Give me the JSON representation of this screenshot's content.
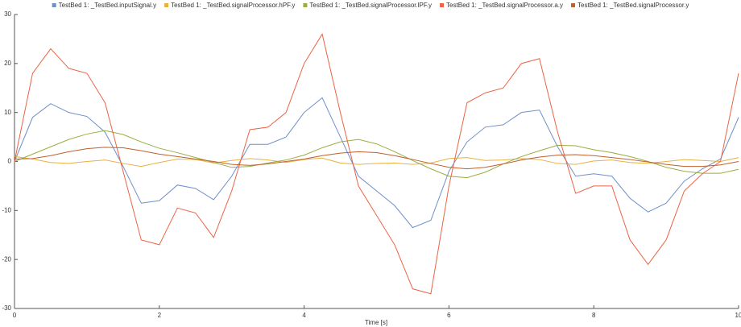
{
  "chart_data": {
    "type": "line",
    "x_label": "Time [s]",
    "x": [
      0,
      0.25,
      0.5,
      0.75,
      1,
      1.25,
      1.5,
      1.75,
      2,
      2.25,
      2.5,
      2.75,
      3,
      3.25,
      3.5,
      3.75,
      4,
      4.25,
      4.5,
      4.75,
      5,
      5.25,
      5.5,
      5.75,
      6,
      6.25,
      6.5,
      6.75,
      7,
      7.25,
      7.5,
      7.75,
      8,
      8.25,
      8.5,
      8.75,
      9,
      9.25,
      9.5,
      9.75,
      10
    ],
    "xlim": [
      0,
      10
    ],
    "xticks": [
      0,
      2,
      4,
      6,
      8,
      10
    ],
    "ylim": [
      -30,
      30
    ],
    "yticks": [
      -30,
      -20,
      -10,
      0,
      10,
      20,
      30
    ],
    "grid": false,
    "legend": "top",
    "series": [
      {
        "name": "TestBed 1: _TestBed.inputSignal.y",
        "color": "#6f8fc9",
        "values": [
          0,
          9,
          11.8,
          10,
          9.2,
          6,
          -1,
          -8.5,
          -8,
          -4.8,
          -5.5,
          -7.8,
          -3,
          3.5,
          3.5,
          5,
          10,
          13,
          5,
          -3,
          -6,
          -9,
          -13.5,
          -12,
          -2,
          4,
          7,
          7.5,
          10,
          10.5,
          3,
          -3,
          -2.5,
          -3,
          -7.5,
          -10.3,
          -8.5,
          -4,
          -1.5,
          0.5,
          9
        ]
      },
      {
        "name": "TestBed 1: _TestBed.signalProcessor.hPF.y",
        "color": "#e8b13f",
        "values": [
          1,
          0.5,
          -0.2,
          -0.4,
          0,
          0.3,
          -0.4,
          -1,
          -0.2,
          0.5,
          0.4,
          -0.3,
          0.2,
          0.6,
          0.3,
          -0.2,
          0.4,
          0.7,
          -0.3,
          -0.6,
          -0.4,
          -0.3,
          -0.6,
          -0.3,
          0.6,
          0.8,
          0.2,
          0.3,
          0.6,
          0.4,
          -0.4,
          -0.6,
          0.1,
          0.3,
          -0.2,
          -0.4,
          0,
          0.4,
          0.2,
          0,
          0.8
        ]
      },
      {
        "name": "TestBed 1: _TestBed.signalProcessor.lPF.y",
        "color": "#9aae3f",
        "values": [
          0,
          1.5,
          3,
          4.5,
          5.6,
          6.3,
          5.5,
          4,
          2.7,
          1.8,
          0.8,
          -0.2,
          -1.2,
          -1,
          -0.3,
          0.3,
          1.3,
          2.8,
          4,
          4.5,
          3.6,
          2,
          0.2,
          -1.5,
          -3,
          -3.3,
          -2.2,
          -0.5,
          1,
          2.2,
          3.3,
          3.2,
          2.4,
          1.8,
          1,
          0,
          -1.2,
          -2,
          -2.4,
          -2.4,
          -1.6
        ]
      },
      {
        "name": "TestBed 1: _TestBed.signalProcessor.a.y",
        "color": "#ec6345",
        "values": [
          0,
          18,
          23,
          19,
          18,
          12,
          -2,
          -16,
          -17,
          -9.5,
          -10.5,
          -15.5,
          -6,
          6.5,
          7,
          10,
          20,
          26,
          10,
          -5,
          -11,
          -17,
          -26,
          -27,
          -5,
          12,
          14,
          15,
          20,
          21,
          6,
          -6.5,
          -5,
          -5,
          -16,
          -21,
          -16,
          -6,
          -2.5,
          0,
          18
        ]
      },
      {
        "name": "TestBed 1: _TestBed.signalProcessor.y",
        "color": "#c0602c",
        "values": [
          0.5,
          0.6,
          1.2,
          2,
          2.6,
          2.9,
          2.8,
          2.2,
          1.5,
          1,
          0.5,
          0,
          -0.6,
          -0.8,
          -0.5,
          0,
          0.5,
          1.2,
          1.7,
          2,
          1.8,
          1.2,
          0.4,
          -0.4,
          -1.2,
          -1.5,
          -1.2,
          -0.5,
          0.3,
          0.9,
          1.3,
          1.4,
          1.2,
          0.8,
          0.4,
          -0.1,
          -0.6,
          -1,
          -1,
          -0.7,
          0
        ]
      }
    ]
  }
}
